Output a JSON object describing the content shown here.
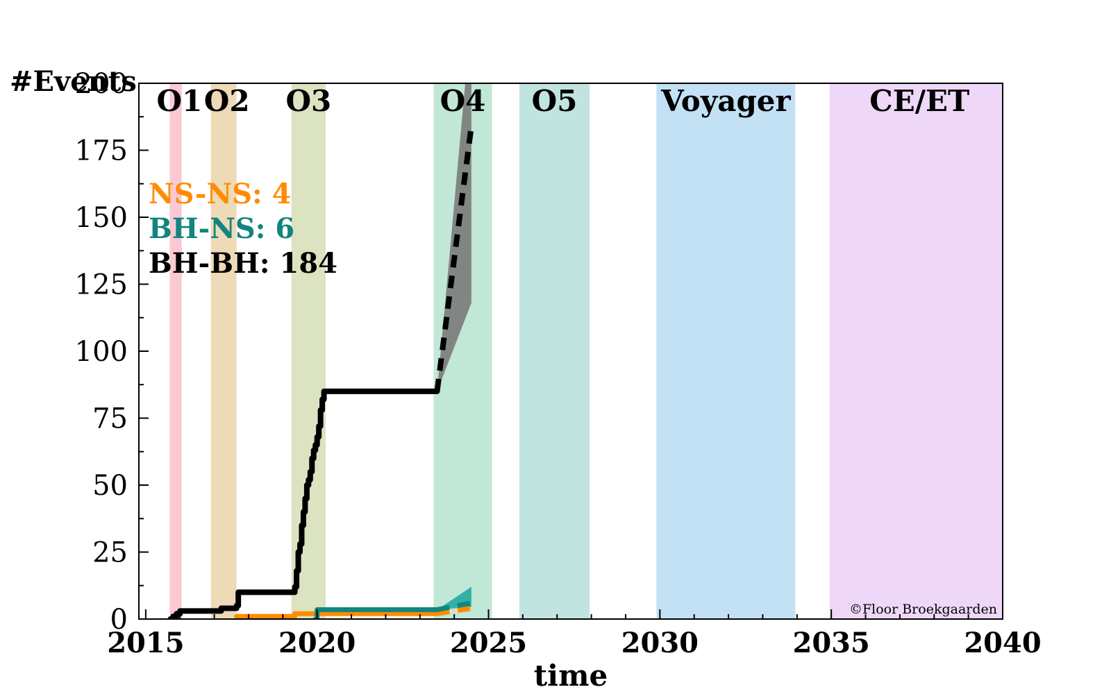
{
  "chart_data": {
    "type": "line",
    "xlabel": "time",
    "ylabel": "#Events",
    "xlim": [
      2014.8,
      2040
    ],
    "ylim": [
      0,
      200
    ],
    "xticks": [
      2015,
      2020,
      2025,
      2030,
      2035,
      2040
    ],
    "yticks": [
      0,
      25,
      50,
      75,
      100,
      125,
      150,
      175,
      200
    ],
    "observing_runs": [
      {
        "name": "O1",
        "start": 2015.7,
        "end": 2016.05,
        "color": "#fbc9d3"
      },
      {
        "name": "O2",
        "start": 2016.9,
        "end": 2017.65,
        "color": "#eedab6"
      },
      {
        "name": "O3",
        "start": 2019.25,
        "end": 2020.25,
        "color": "#dbe3c0"
      },
      {
        "name": "O4",
        "start": 2023.4,
        "end": 2025.1,
        "color": "#c1e7d6"
      },
      {
        "name": "O5",
        "start": 2025.9,
        "end": 2027.95,
        "color": "#c1e4e1"
      },
      {
        "name": "Voyager",
        "start": 2029.9,
        "end": 2033.95,
        "color": "#c3e1f5"
      },
      {
        "name": "CE/ET",
        "start": 2034.95,
        "end": 2040.2,
        "color": "#eed7f7"
      }
    ],
    "counts": [
      {
        "label": "NS-NS: 4",
        "color": "#ff8c00"
      },
      {
        "label": "BH-NS: 6",
        "color": "#11857f"
      },
      {
        "label": "BH-BH: 184",
        "color": "#000000"
      }
    ],
    "series": [
      {
        "name": "BH-BH",
        "color": "#000000",
        "x": [
          2015.72,
          2015.8,
          2015.9,
          2016.0,
          2016.95,
          2017.2,
          2017.5,
          2017.65,
          2017.7,
          2019.3,
          2019.35,
          2019.4,
          2019.45,
          2019.5,
          2019.55,
          2019.6,
          2019.65,
          2019.7,
          2019.75,
          2019.8,
          2019.85,
          2019.9,
          2019.95,
          2020.0,
          2020.05,
          2020.1,
          2020.15,
          2020.2,
          2020.25,
          2023.5
        ],
        "y": [
          0,
          1,
          2,
          3,
          3,
          4,
          4,
          5,
          10,
          10,
          12,
          18,
          25,
          28,
          35,
          40,
          45,
          50,
          52,
          55,
          60,
          63,
          65,
          68,
          72,
          78,
          82,
          85,
          85,
          85
        ]
      },
      {
        "name": "BH-BH projection",
        "color": "#000000",
        "dashed": true,
        "x": [
          2023.5,
          2024.5
        ],
        "y": [
          85,
          184
        ],
        "band_upper": [
          85,
          225
        ],
        "band_lower": [
          85,
          118
        ],
        "band_color": "#7a7a7a"
      },
      {
        "name": "NS-NS",
        "color": "#ff8c00",
        "x": [
          2017.65,
          2019.3,
          2019.35,
          2020.1,
          2023.5
        ],
        "y": [
          1,
          1,
          2,
          2,
          2
        ]
      },
      {
        "name": "NS-NS projection",
        "color": "#ff8c00",
        "dashed": true,
        "x": [
          2023.5,
          2024.5
        ],
        "y": [
          2,
          4
        ],
        "band_upper": [
          2,
          5
        ],
        "band_lower": [
          2,
          3
        ],
        "band_color": "#f3d8a8"
      },
      {
        "name": "BH-NS",
        "color": "#11857f",
        "x": [
          2019.95,
          2020.0,
          2023.5
        ],
        "y": [
          0,
          3.5,
          3.5
        ]
      },
      {
        "name": "BH-NS projection",
        "color": "#11857f",
        "dashed": true,
        "x": [
          2023.5,
          2024.5
        ],
        "y": [
          3.5,
          6
        ],
        "band_upper": [
          3.5,
          12
        ],
        "band_lower": [
          3.5,
          4.5
        ],
        "band_color": "#20aaa2"
      }
    ],
    "credit": "©Floor Broekgaarden"
  }
}
